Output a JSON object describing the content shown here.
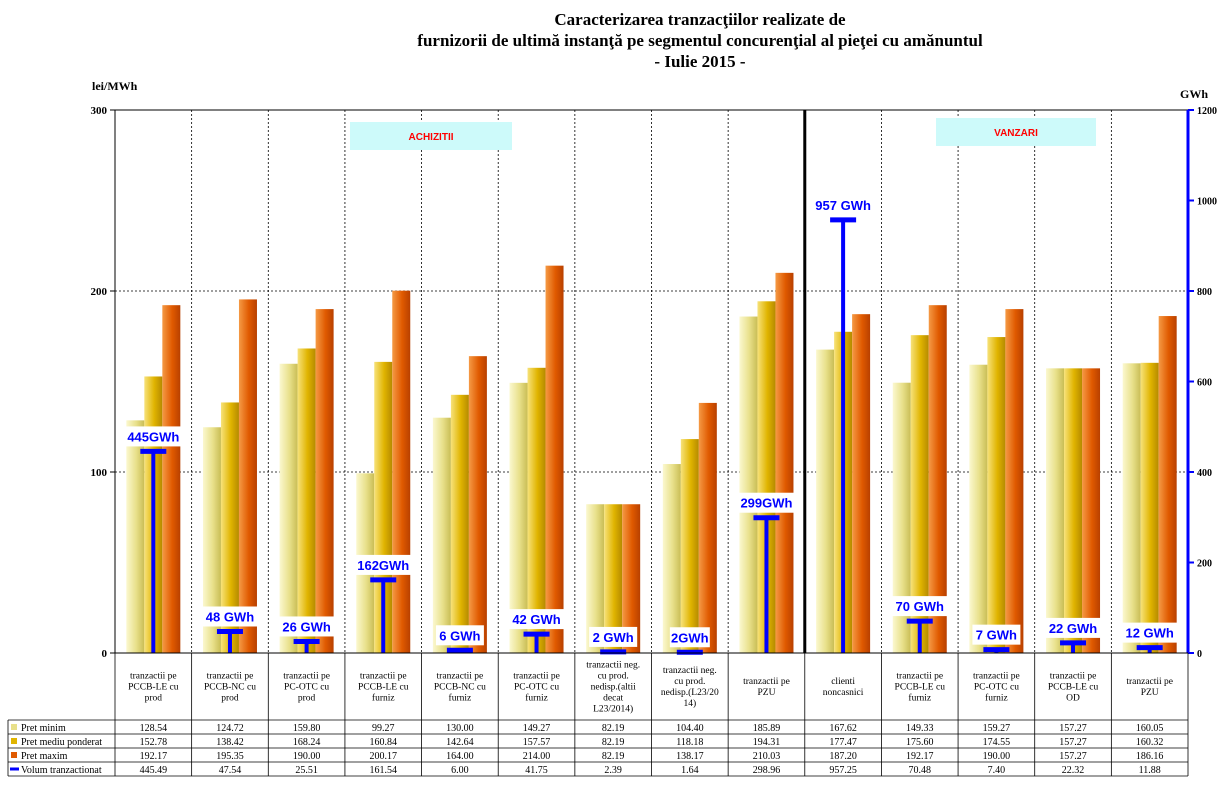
{
  "chart_data": {
    "type": "bar",
    "title": "Caracterizarea tranzacţiilor realizate de",
    "subtitle": "furnizorii de ultimă instanţă pe segmentul concurenţial al pieţei cu amănuntul",
    "period": "- Iulie 2015 -",
    "ylabel": "lei/MWh",
    "y2label": "GWh",
    "ylim": [
      0,
      300
    ],
    "yticks": [
      "0",
      "100",
      "200",
      "300"
    ],
    "y2lim": [
      0,
      1200
    ],
    "y2ticks": [
      "0",
      "200",
      "400",
      "600",
      "800",
      "1000",
      "1200"
    ],
    "grid": true,
    "section_labels": [
      "ACHIZITII",
      "VANZARI"
    ],
    "categories": [
      [
        "tranzactii pe",
        "PCCB-LE cu",
        "prod"
      ],
      [
        "tranzactii pe",
        "PCCB-NC cu",
        "prod"
      ],
      [
        "tranzactii pe",
        "PC-OTC cu",
        "prod"
      ],
      [
        "tranzactii pe",
        "PCCB-LE cu",
        "furniz"
      ],
      [
        "tranzactii pe",
        "PCCB-NC cu",
        "furniz"
      ],
      [
        "tranzactii pe",
        "PC-OTC cu",
        "furniz"
      ],
      [
        "tranzactii neg.",
        "cu prod.",
        "nedisp.(altii",
        "decat",
        "L23/2014)"
      ],
      [
        "tranzactii neg.",
        "cu prod.",
        "nedisp.(L23/20",
        "14)"
      ],
      [
        "tranzactii pe",
        "PZU"
      ],
      [
        "clienti",
        "noncasnici"
      ],
      [
        "tranzactii pe",
        "PCCB-LE cu",
        "furniz"
      ],
      [
        "tranzactii pe",
        "PC-OTC cu",
        "furniz"
      ],
      [
        "tranzactii pe",
        "PCCB-LE cu",
        "OD"
      ],
      [
        "tranzactii pe",
        "PZU"
      ]
    ],
    "series": [
      {
        "name": "Pret minim",
        "color": "#e8e08a",
        "values": [
          128.54,
          124.72,
          159.8,
          99.27,
          130.0,
          149.27,
          82.19,
          104.4,
          185.89,
          167.62,
          149.33,
          159.27,
          157.27,
          160.05
        ],
        "display": [
          "128.54",
          "124.72",
          "159.80",
          "99.27",
          "130.00",
          "149.27",
          "82.19",
          "104.40",
          "185.89",
          "167.62",
          "149.33",
          "159.27",
          "157.27",
          "160.05"
        ]
      },
      {
        "name": "Pret mediu ponderat",
        "color": "#e0b400",
        "values": [
          152.78,
          138.42,
          168.24,
          160.84,
          142.64,
          157.57,
          82.19,
          118.18,
          194.31,
          177.47,
          175.6,
          174.55,
          157.27,
          160.32
        ],
        "display": [
          "152.78",
          "138.42",
          "168.24",
          "160.84",
          "142.64",
          "157.57",
          "82.19",
          "118.18",
          "194.31",
          "177.47",
          "175.60",
          "174.55",
          "157.27",
          "160.32"
        ]
      },
      {
        "name": "Pret maxim",
        "color": "#e05a00",
        "values": [
          192.17,
          195.35,
          190.0,
          200.17,
          164.0,
          214.0,
          82.19,
          138.17,
          210.03,
          187.2,
          192.17,
          190.0,
          157.27,
          186.16
        ],
        "display": [
          "192.17",
          "195.35",
          "190.00",
          "200.17",
          "164.00",
          "214.00",
          "82.19",
          "138.17",
          "210.03",
          "187.20",
          "192.17",
          "190.00",
          "157.27",
          "186.16"
        ]
      }
    ],
    "volume": {
      "name": "Volum tranzactionat",
      "color": "#0000ff",
      "values": [
        445.49,
        47.54,
        25.51,
        161.54,
        6.0,
        41.75,
        2.39,
        1.64,
        298.96,
        957.25,
        70.48,
        7.4,
        22.32,
        11.88
      ],
      "display": [
        "445.49",
        "47.54",
        "25.51",
        "161.54",
        "6.00",
        "41.75",
        "2.39",
        "1.64",
        "298.96",
        "957.25",
        "70.48",
        "7.40",
        "22.32",
        "11.88"
      ],
      "labels": [
        "445GWh",
        "48 GWh",
        "26 GWh",
        "162GWh",
        "6 GWh",
        "42 GWh",
        "2 GWh",
        "2GWh",
        "299GWh",
        "957 GWh",
        "70 GWh",
        "7 GWh",
        "22 GWh",
        "12 GWh"
      ]
    }
  }
}
